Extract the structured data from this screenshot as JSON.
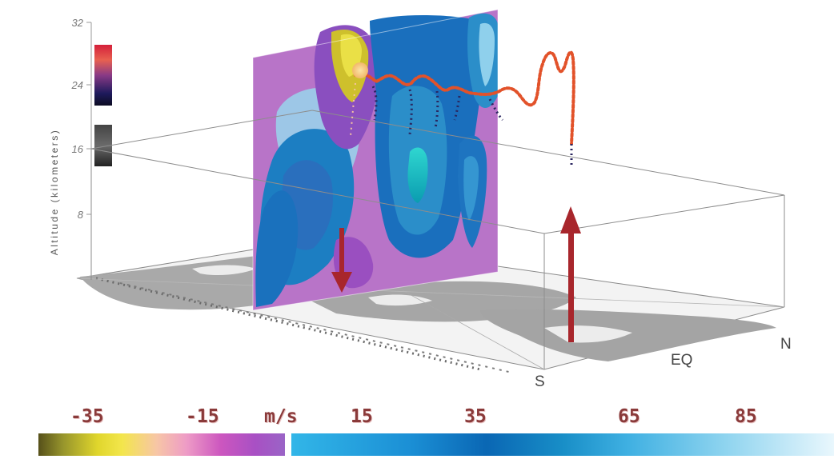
{
  "axis": {
    "title": "Altitude (kilometers)",
    "ticks": [
      "32",
      "24",
      "16",
      "8"
    ]
  },
  "directions": {
    "south": "S",
    "equator": "EQ",
    "north": "N"
  },
  "scale": {
    "labels": [
      "-35",
      "-15",
      "m/s",
      "15",
      "35",
      "65",
      "85"
    ],
    "negative_colors": [
      "#56501a",
      "#e0d62c",
      "#f7c6a6",
      "#cc56bf",
      "#9a64c6"
    ],
    "positive_colors": [
      "#32b6e8",
      "#0a67b4",
      "#3fb0e2",
      "#e9f7fd"
    ]
  },
  "colors": {
    "arrow": "#a8262c",
    "temperature_warm": "#e2522a",
    "temperature_cold": "#1e1a5c",
    "land": "#a8a8a8"
  }
}
